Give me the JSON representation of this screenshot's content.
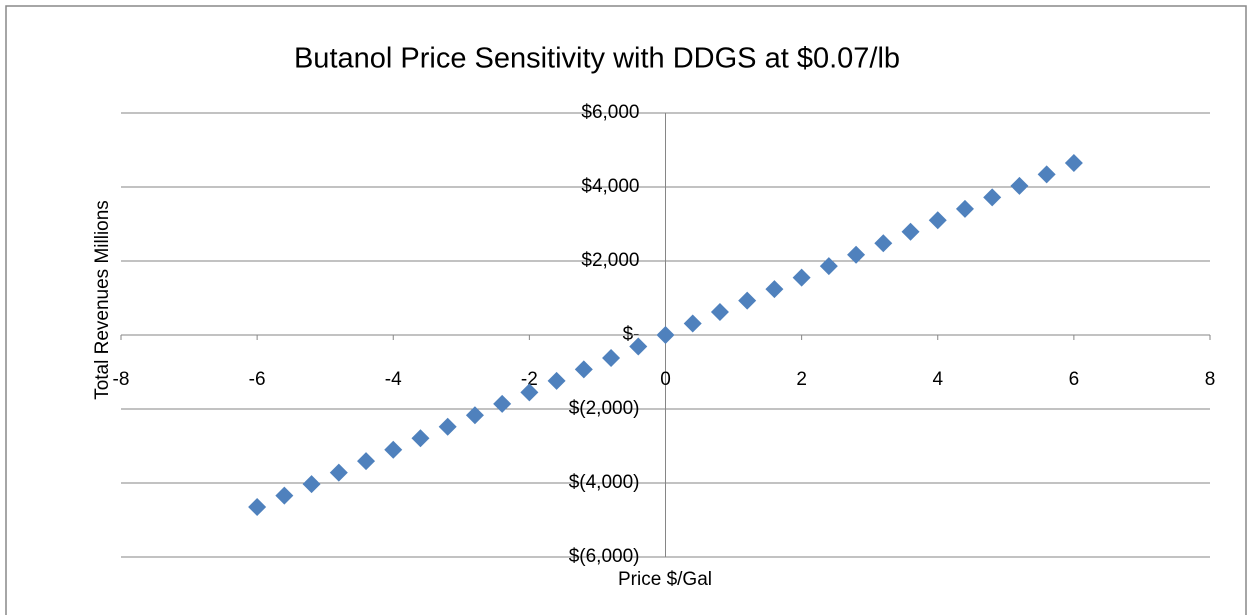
{
  "chart_data": {
    "type": "scatter",
    "title": "Butanol Price Sensitivity with DDGS at $0.07/lb",
    "x_label": "Price $/Gal",
    "y_label": "Total Revenues  Millions",
    "x": [
      -6,
      -5.6,
      -5.2,
      -4.8,
      -4.4,
      -4,
      -3.6,
      -3.2,
      -2.8,
      -2.4,
      -2,
      -1.6,
      -1.2,
      -0.8,
      -0.4,
      0,
      0.4,
      0.8,
      1.2,
      1.6,
      2,
      2.4,
      2.8,
      3.2,
      3.6,
      4,
      4.4,
      4.8,
      5.2,
      5.6,
      6
    ],
    "values": [
      -4650,
      -4340,
      -4030,
      -3720,
      -3410,
      -3100,
      -2790,
      -2480,
      -2170,
      -1860,
      -1550,
      -1240,
      -930,
      -620,
      -310,
      0,
      310,
      620,
      930,
      1240,
      1550,
      1860,
      2170,
      2480,
      2790,
      3100,
      3410,
      3720,
      4030,
      4340,
      4650
    ],
    "color": "#4f81bd",
    "xlim": [
      -8,
      8
    ],
    "xticks": [
      -8,
      -6,
      -4,
      -2,
      0,
      2,
      4,
      6,
      8
    ],
    "ylim": [
      -6000,
      6000
    ],
    "yticks": [
      {
        "value": 6000,
        "label": "$6,000"
      },
      {
        "value": 4000,
        "label": "$4,000"
      },
      {
        "value": 2000,
        "label": "$2,000"
      },
      {
        "value": 0,
        "label": "$-"
      },
      {
        "value": -2000,
        "label": "$(2,000)"
      },
      {
        "value": -4000,
        "label": "$(4,000)"
      },
      {
        "value": -6000,
        "label": "$(6,000)"
      }
    ],
    "grid": true
  }
}
